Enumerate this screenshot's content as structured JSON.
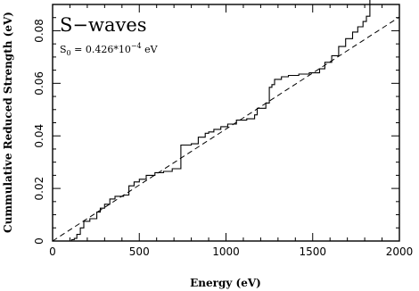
{
  "chart_data": {
    "type": "line",
    "title": "",
    "xlabel": "Energy (eV)",
    "ylabel": "Cummulative Reduced Strength (eV)",
    "xlim": [
      0,
      2000
    ],
    "ylim": [
      0,
      0.09
    ],
    "x_ticks": [
      0,
      500,
      1000,
      1500,
      2000
    ],
    "x_tick_labels": [
      "0",
      "500",
      "1000",
      "1500",
      "2000"
    ],
    "y_ticks": [
      0,
      0.02,
      0.04,
      0.06,
      0.08
    ],
    "y_tick_labels": [
      "0",
      "0.02",
      "0.04",
      "0.06",
      "0.08"
    ],
    "grid": false,
    "annotations": {
      "title": "S−waves",
      "sub_lhs": "S",
      "sub_lhs_index": "0",
      "sub_rhs": " = 0.426*10",
      "sub_exp": "−4",
      "sub_unit": " eV"
    },
    "series": [
      {
        "style": "step-solid",
        "x": [
          0,
          110,
          125,
          140,
          160,
          180,
          215,
          255,
          275,
          300,
          330,
          360,
          410,
          440,
          470,
          500,
          540,
          590,
          640,
          690,
          740,
          800,
          840,
          880,
          900,
          930,
          970,
          1010,
          1060,
          1120,
          1165,
          1180,
          1230,
          1250,
          1265,
          1280,
          1320,
          1360,
          1420,
          1480,
          1540,
          1570,
          1610,
          1650,
          1690,
          1730,
          1760,
          1790,
          1810,
          1830,
          2000
        ],
        "y": [
          0,
          0.0005,
          0.001,
          0.0025,
          0.005,
          0.0075,
          0.0085,
          0.011,
          0.0125,
          0.014,
          0.016,
          0.017,
          0.0175,
          0.021,
          0.0225,
          0.0235,
          0.025,
          0.026,
          0.0265,
          0.0275,
          0.0365,
          0.037,
          0.0395,
          0.041,
          0.0415,
          0.0425,
          0.0435,
          0.0445,
          0.046,
          0.0465,
          0.048,
          0.0505,
          0.0525,
          0.0585,
          0.0595,
          0.0615,
          0.0625,
          0.063,
          0.0635,
          0.064,
          0.0655,
          0.068,
          0.0705,
          0.074,
          0.077,
          0.0795,
          0.0815,
          0.0835,
          0.0855,
          0.092,
          0.092
        ]
      },
      {
        "style": "dashed-fit",
        "x": [
          0,
          2000
        ],
        "y": [
          0,
          0.0852
        ]
      }
    ]
  }
}
